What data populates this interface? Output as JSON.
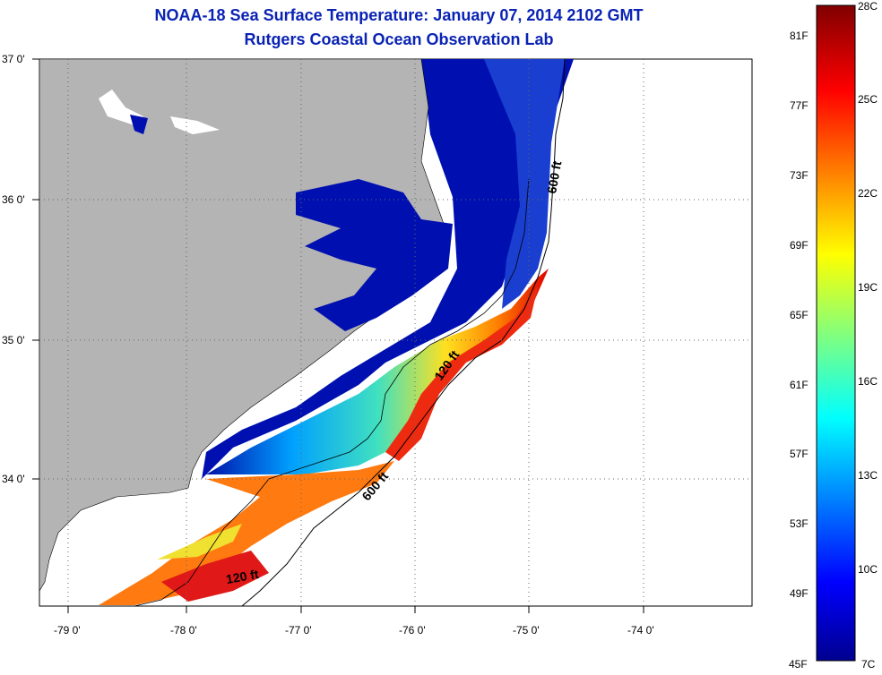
{
  "header": {
    "title": "NOAA-18 Sea Surface Temperature:  January 07, 2014 2102 GMT",
    "subtitle": "Rutgers Coastal Ocean Observation Lab"
  },
  "map": {
    "lat_labels": [
      "37 0'",
      "36 0'",
      "35 0'",
      "34 0'"
    ],
    "lon_labels": [
      "-79 0'",
      "-78 0'",
      "-77 0'",
      "-76 0'",
      "-75 0'",
      "-74 0'"
    ],
    "contour_labels": [
      "600 ft",
      "120 ft",
      "600 ft",
      "120 ft"
    ]
  },
  "colorbar": {
    "fahrenheit_labels": [
      "81F",
      "77F",
      "73F",
      "69F",
      "65F",
      "61F",
      "57F",
      "53F",
      "49F",
      "45F"
    ],
    "celsius_labels": [
      "28C",
      "25C",
      "22C",
      "19C",
      "16C",
      "13C",
      "10C",
      "7C"
    ],
    "range_c": [
      7,
      28
    ]
  },
  "colors": {
    "land": "#b4b4b4",
    "title": "#0a23b4",
    "cold": "#00008f",
    "warm": "#8b0000"
  }
}
